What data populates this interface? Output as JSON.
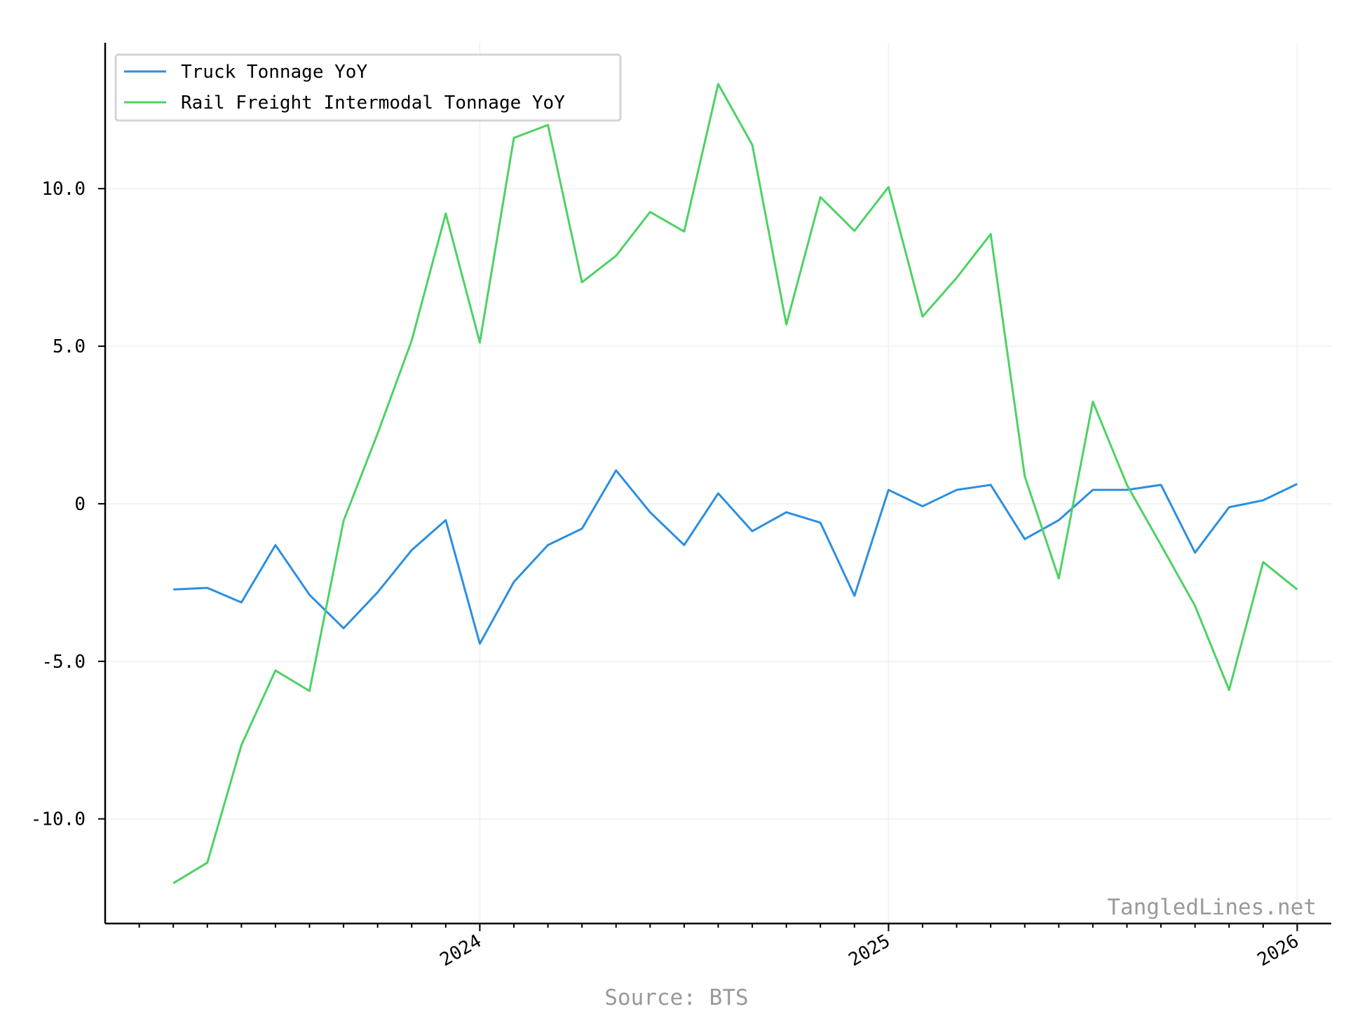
{
  "chart_data": {
    "type": "line",
    "x": [
      "2023-04",
      "2023-05",
      "2023-06",
      "2023-07",
      "2023-08",
      "2023-09",
      "2023-10",
      "2023-11",
      "2023-12",
      "2024-01",
      "2024-02",
      "2024-03",
      "2024-04",
      "2024-05",
      "2024-06",
      "2024-07",
      "2024-08",
      "2024-09",
      "2024-10",
      "2024-11",
      "2024-12",
      "2025-01",
      "2025-02",
      "2025-03",
      "2025-04",
      "2025-05",
      "2025-06",
      "2025-07",
      "2025-08",
      "2025-09",
      "2025-10",
      "2025-11",
      "2025-12",
      "2026-01"
    ],
    "series": [
      {
        "name": "Truck Tonnage YoY",
        "color": "#2b8fe0",
        "values": [
          -2.72,
          -2.67,
          -3.13,
          -1.31,
          -2.89,
          -3.95,
          -2.81,
          -1.47,
          -0.52,
          -4.44,
          -2.48,
          -1.31,
          -0.79,
          1.06,
          -0.27,
          -1.31,
          0.33,
          -0.87,
          -0.27,
          -0.6,
          -2.92,
          0.44,
          -0.08,
          0.44,
          0.6,
          -1.12,
          -0.52,
          0.44,
          0.44,
          0.6,
          -1.55,
          -0.11,
          0.11,
          0.63
        ]
      },
      {
        "name": "Rail Freight Intermodal Tonnage YoY",
        "color": "#4cd263",
        "values": [
          -12.04,
          -11.39,
          -7.66,
          -5.29,
          -5.94,
          -0.54,
          2.23,
          5.18,
          9.21,
          5.12,
          11.61,
          12.02,
          7.03,
          7.87,
          9.26,
          8.64,
          13.32,
          11.39,
          5.69,
          9.73,
          8.66,
          10.05,
          5.94,
          7.17,
          8.56,
          0.87,
          -2.37,
          3.24,
          0.6,
          -1.31,
          -3.24,
          -5.91,
          -1.85,
          -2.72
        ]
      }
    ],
    "xlim": [
      "2023-02",
      "2026-02"
    ],
    "xticks": [
      {
        "value": "2024-01",
        "label": "2024"
      },
      {
        "value": "2025-01",
        "label": "2025"
      },
      {
        "value": "2026-01",
        "label": "2026"
      }
    ],
    "ylim": [
      -13.32,
      14.63
    ],
    "yticks": [
      {
        "value": -10,
        "label": "-10.0"
      },
      {
        "value": -5,
        "label": "-5.0"
      },
      0,
      {
        "value": 5,
        "label": "5.0"
      },
      {
        "value": 10,
        "label": "10.0"
      }
    ],
    "grid": true,
    "legend": "upper left",
    "annotations": [
      "TangledLines.net",
      "Source: BTS"
    ]
  }
}
